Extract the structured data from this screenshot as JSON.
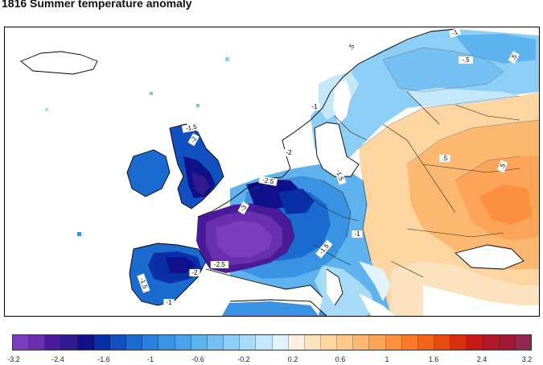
{
  "title": "1816 Summer temperature anomaly",
  "map": {
    "region": "Europe",
    "contour_labels": [
      {
        "text": "-1",
        "region": "Norway north"
      },
      {
        "text": ".5",
        "region": "Norway"
      },
      {
        "text": "-.5",
        "region": "Finland"
      },
      {
        "text": ".5",
        "region": "Russia north"
      },
      {
        "text": "-1",
        "region": "Sweden south"
      },
      {
        "text": "-1.5",
        "region": "Scotland"
      },
      {
        "text": "-2",
        "region": "England"
      },
      {
        "text": "-2",
        "region": "Denmark"
      },
      {
        "text": "-1.5",
        "region": "Germany north"
      },
      {
        "text": ".5",
        "region": "Russia"
      },
      {
        "text": ".5",
        "region": "Ukraine"
      },
      {
        "text": "-2.5",
        "region": "Benelux"
      },
      {
        "text": "-3",
        "region": "France"
      },
      {
        "text": "-2",
        "region": "Spain"
      },
      {
        "text": "-2.5",
        "region": "Pyrenees"
      },
      {
        "text": "-1.5",
        "region": "Iberia west"
      },
      {
        "text": "-1",
        "region": "Austria"
      },
      {
        "text": "-1.5",
        "region": "Italy"
      },
      {
        "text": "-1",
        "region": "Mediterranean"
      }
    ]
  },
  "colorbar": {
    "colors": [
      "#7a3fbf",
      "#6a2fb0",
      "#4a1a9a",
      "#301a8f",
      "#10108a",
      "#0a30a8",
      "#1050c0",
      "#1a6ad0",
      "#2a80dc",
      "#3a92e2",
      "#4ca2e8",
      "#5eb2ee",
      "#74c0f2",
      "#8ccef5",
      "#a8dbf7",
      "#c4e8fa",
      "#e2f3fc",
      "#fdf0e0",
      "#fde2c0",
      "#fdd5a0",
      "#fdc888",
      "#fcb870",
      "#fca558",
      "#fb9040",
      "#f87a2a",
      "#f26418",
      "#e84a10",
      "#d83010",
      "#c81818",
      "#b01828",
      "#a01838",
      "#902850"
    ],
    "tick_labels": [
      "-3.2",
      "-2.4",
      "-1.6",
      "-1",
      "-0.6",
      "-0.2",
      "0.2",
      "0.6",
      "1",
      "1.6",
      "2.4",
      "3.2"
    ],
    "tick_values": [
      -3.2,
      -2.4,
      -1.6,
      -1,
      -0.6,
      -0.2,
      0.2,
      0.6,
      1,
      1.6,
      2.4,
      3.2
    ]
  }
}
